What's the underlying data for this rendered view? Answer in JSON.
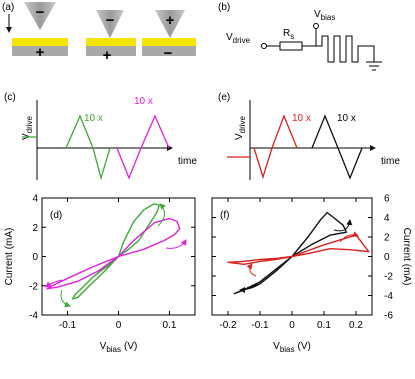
{
  "panel_a": {
    "label": "(a)",
    "tip_signs": [
      "−",
      "−",
      "+"
    ],
    "sample_signs": [
      "+",
      "+",
      "−"
    ]
  },
  "panel_b": {
    "label": "(b)",
    "drive": {
      "main": "V",
      "sub": "drive"
    },
    "resistor": {
      "main": "R",
      "sub": "s"
    },
    "bias": {
      "main": "V",
      "sub": "bias"
    }
  },
  "panel_c": {
    "label": "(c)",
    "y_label": {
      "main": "V",
      "sub": "drive"
    },
    "x_label": "time",
    "annotations": [
      "10 x",
      "10 x"
    ]
  },
  "panel_e": {
    "label": "(e)",
    "y_label": {
      "main": "V",
      "sub": "drive"
    },
    "x_label": "time",
    "annotations": [
      "10 x",
      "10 x"
    ]
  },
  "chart_data": [
    {
      "type": "line",
      "label": "(d)",
      "x_label": {
        "main": "V",
        "sub": "bias",
        "rest": "(V)"
      },
      "y_label": "Current (mA)",
      "y_axis": "left",
      "xlim": [
        -0.15,
        0.15
      ],
      "xticks": [
        -0.1,
        0,
        0.1
      ],
      "ylim": [
        -4,
        4
      ],
      "yticks": [
        -4,
        -2,
        0,
        2,
        4
      ],
      "series": [
        {
          "color": "#3aaa35",
          "x": [
            0,
            0.02,
            0.04,
            0.06,
            0.075,
            0.08,
            0.07,
            0.05,
            0.03,
            0.01,
            0,
            -0.02,
            -0.05,
            -0.07,
            -0.085,
            -0.09,
            -0.08,
            -0.06,
            -0.03,
            0
          ],
          "values": [
            0,
            0.5,
            1.1,
            2.2,
            3.0,
            3.5,
            3.6,
            3.2,
            2.4,
            1.0,
            0,
            -0.6,
            -1.4,
            -2.1,
            -2.6,
            -2.9,
            -2.8,
            -2.1,
            -1.1,
            0
          ]
        },
        {
          "color": "#e020e0",
          "x": [
            0,
            0.05,
            0.09,
            0.11,
            0.12,
            0.115,
            0.1,
            0.07,
            0.03,
            0,
            -0.05,
            -0.1,
            -0.13,
            -0.14,
            -0.12,
            -0.08,
            -0.04,
            0
          ],
          "values": [
            0,
            0.5,
            1.1,
            1.5,
            1.9,
            2.4,
            2.6,
            2.3,
            1.1,
            0,
            -0.7,
            -1.5,
            -2.0,
            -2.2,
            -2.1,
            -1.7,
            -1.0,
            0
          ]
        }
      ]
    },
    {
      "type": "line",
      "label": "(f)",
      "x_label": {
        "main": "V",
        "sub": "bias",
        "rest": "(V)"
      },
      "y_label": "Current (mA)",
      "y_axis": "right",
      "xlim": [
        -0.25,
        0.25
      ],
      "xticks": [
        -0.2,
        -0.1,
        0,
        0.1,
        0.2
      ],
      "ylim": [
        -6,
        6
      ],
      "yticks": [
        -6,
        -4,
        -2,
        0,
        2,
        4,
        6
      ],
      "series": [
        {
          "color": "#111111",
          "x": [
            0,
            0.05,
            0.09,
            0.11,
            0.13,
            0.16,
            0.17,
            0.12,
            0.06,
            0,
            -0.05,
            -0.1,
            -0.15,
            -0.18,
            -0.14,
            -0.1,
            -0.05,
            0
          ],
          "values": [
            0,
            2.0,
            3.8,
            4.5,
            4.0,
            3.2,
            2.5,
            2.2,
            1.2,
            0,
            -1.3,
            -2.6,
            -3.4,
            -3.8,
            -3.3,
            -2.8,
            -1.5,
            0
          ]
        },
        {
          "color": "#dd2020",
          "x": [
            0,
            0.05,
            0.1,
            0.15,
            0.2,
            0.24,
            0.18,
            0.12,
            0.05,
            0,
            -0.05,
            -0.1,
            -0.15,
            -0.2,
            -0.15,
            -0.1,
            -0.05,
            0
          ],
          "values": [
            0,
            0.6,
            1.2,
            1.7,
            2.2,
            0.5,
            0.7,
            0.8,
            0.3,
            0,
            -0.3,
            -0.5,
            -0.8,
            -0.6,
            -0.5,
            -0.3,
            -0.2,
            0
          ]
        }
      ]
    }
  ]
}
